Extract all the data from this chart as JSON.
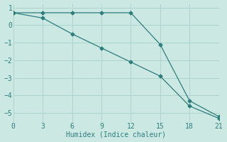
{
  "line1_x": [
    0,
    3,
    6,
    9,
    12,
    15,
    18,
    21
  ],
  "line1_y": [
    0.7,
    0.7,
    0.7,
    0.7,
    0.7,
    -1.1,
    -4.3,
    -5.2
  ],
  "line2_x": [
    0,
    3,
    6,
    9,
    12,
    15,
    18,
    21
  ],
  "line2_y": [
    0.7,
    0.4,
    -0.5,
    -1.3,
    -2.1,
    -2.9,
    -4.6,
    -5.3
  ],
  "color": "#2e7d7d",
  "bg_color": "#cce8e3",
  "grid_color": "#afd4ce",
  "xlabel": "Humidex (Indice chaleur)",
  "xlim": [
    0,
    21
  ],
  "ylim": [
    -5.5,
    1.2
  ],
  "xticks": [
    0,
    3,
    6,
    9,
    12,
    15,
    18,
    21
  ],
  "yticks": [
    1,
    0,
    -1,
    -2,
    -3,
    -4,
    -5
  ],
  "marker": "D",
  "markersize": 2.5,
  "linewidth": 0.9
}
